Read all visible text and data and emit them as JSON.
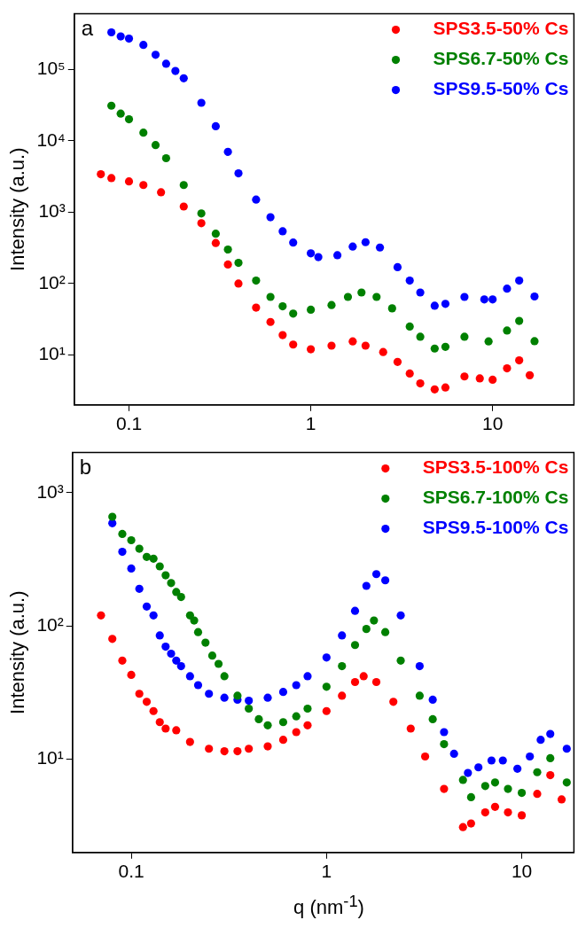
{
  "chart_data": [
    {
      "type": "scatter",
      "annotations": [
        "a"
      ],
      "ylabel": "Intensity (a.u.)",
      "log": "xy",
      "legend": "top right",
      "marker": "circle",
      "xlim": [
        0.05,
        28
      ],
      "xticks": [
        0.1,
        1,
        10
      ],
      "ylim": [
        2,
        600000
      ],
      "yticks": [
        {
          "value": 10,
          "label": "10¹"
        },
        {
          "value": 100,
          "label": "10²"
        },
        {
          "value": 1000,
          "label": "10³"
        },
        {
          "value": 10000,
          "label": "10⁴"
        },
        {
          "value": 100000,
          "label": "10⁵"
        }
      ],
      "series": [
        {
          "name": "SPS3.5-50% Cs",
          "color": "#ff0000",
          "x": [
            0.07,
            0.08,
            0.1,
            0.12,
            0.15,
            0.2,
            0.25,
            0.3,
            0.35,
            0.4,
            0.5,
            0.6,
            0.7,
            0.8,
            1.0,
            1.3,
            1.7,
            2.0,
            2.5,
            3,
            3.5,
            4,
            4.8,
            5.5,
            7,
            8.5,
            10,
            12,
            14,
            16
          ],
          "values": [
            3400,
            3000,
            2700,
            2400,
            1900,
            1200,
            700,
            370,
            185,
            100,
            46,
            29,
            19,
            14,
            12,
            13.5,
            15.5,
            13.5,
            11,
            8,
            5.5,
            4,
            3.3,
            3.5,
            5,
            4.7,
            4.5,
            6.5,
            8.4,
            5.2
          ]
        },
        {
          "name": "SPS6.7-50% Cs",
          "color": "#008000",
          "x": [
            0.08,
            0.09,
            0.1,
            0.12,
            0.14,
            0.16,
            0.2,
            0.25,
            0.3,
            0.35,
            0.4,
            0.5,
            0.6,
            0.7,
            0.8,
            1.0,
            1.3,
            1.6,
            1.9,
            2.3,
            2.8,
            3.5,
            4.0,
            4.8,
            5.5,
            7,
            9.5,
            12,
            14,
            17
          ],
          "values": [
            31000,
            24000,
            20000,
            13000,
            8700,
            5700,
            2400,
            960,
            500,
            300,
            195,
            110,
            65,
            48,
            38,
            43,
            50,
            65,
            75,
            65,
            45,
            25,
            18,
            12.3,
            13,
            18,
            15.5,
            22,
            30,
            15.6
          ]
        },
        {
          "name": "SPS9.5-50% Cs",
          "color": "#0000ff",
          "x": [
            0.08,
            0.09,
            0.1,
            0.12,
            0.14,
            0.16,
            0.18,
            0.2,
            0.25,
            0.3,
            0.35,
            0.4,
            0.5,
            0.6,
            0.7,
            0.8,
            1.0,
            1.1,
            1.4,
            1.7,
            2.0,
            2.4,
            3,
            3.5,
            4,
            4.8,
            5.5,
            7,
            9,
            10,
            12,
            14,
            17
          ],
          "values": [
            330000,
            290000,
            270000,
            220000,
            160000,
            120000,
            95000,
            75000,
            34000,
            16000,
            7000,
            3500,
            1500,
            850,
            540,
            375,
            265,
            235,
            250,
            330,
            380,
            320,
            170,
            110,
            75,
            49,
            52,
            65,
            60,
            60,
            85,
            110,
            66
          ]
        }
      ]
    },
    {
      "type": "scatter",
      "annotations": [
        "b"
      ],
      "xlabel": "q (nm$^{-1}$)",
      "ylabel": "Intensity (a.u.)",
      "log": "xy",
      "legend": "top right",
      "marker": "circle",
      "xlim": [
        0.05,
        18.5
      ],
      "xticks": [
        0.1,
        1,
        10
      ],
      "ylim": [
        2,
        2000
      ],
      "yticks": [
        {
          "value": 10,
          "label": "10¹"
        },
        {
          "value": 100,
          "label": "10²"
        },
        {
          "value": 1000,
          "label": "10³"
        }
      ],
      "series": [
        {
          "name": "SPS3.5-100% Cs",
          "color": "#ff0000",
          "x": [
            0.07,
            0.08,
            0.09,
            0.1,
            0.11,
            0.12,
            0.13,
            0.14,
            0.15,
            0.17,
            0.2,
            0.25,
            0.3,
            0.35,
            0.4,
            0.5,
            0.6,
            0.7,
            0.8,
            1.0,
            1.2,
            1.4,
            1.55,
            1.8,
            2.2,
            2.7,
            3.2,
            4,
            5,
            5.5,
            6.5,
            7.3,
            8.5,
            10,
            12,
            14,
            16
          ],
          "values": [
            120,
            80,
            55,
            43,
            31,
            27,
            23,
            19,
            17,
            16.5,
            13.5,
            12,
            11.5,
            11.5,
            12,
            12.5,
            14,
            16,
            18,
            23,
            30,
            38,
            42,
            38,
            27,
            17,
            10.5,
            6,
            3.1,
            3.3,
            4,
            4.4,
            4,
            3.8,
            5.5,
            7.6,
            5
          ]
        },
        {
          "name": "SPS6.7-100% Cs",
          "color": "#008000",
          "x": [
            0.08,
            0.09,
            0.1,
            0.11,
            0.12,
            0.13,
            0.14,
            0.15,
            0.16,
            0.17,
            0.18,
            0.2,
            0.21,
            0.22,
            0.24,
            0.26,
            0.28,
            0.3,
            0.35,
            0.4,
            0.45,
            0.5,
            0.6,
            0.7,
            0.8,
            1.0,
            1.2,
            1.4,
            1.6,
            1.75,
            2.0,
            2.4,
            3,
            3.5,
            4,
            5,
            5.5,
            6.5,
            7.3,
            8.5,
            10,
            12,
            14,
            17
          ],
          "values": [
            660,
            490,
            440,
            380,
            330,
            320,
            280,
            240,
            210,
            180,
            165,
            120,
            110,
            90,
            75,
            60,
            52,
            42,
            30,
            24,
            20,
            18,
            19,
            21,
            24,
            35,
            50,
            72,
            95,
            110,
            90,
            55,
            30,
            20,
            13,
            7,
            5.2,
            6.3,
            6.7,
            6,
            5.6,
            8,
            10.2,
            6.7
          ]
        },
        {
          "name": "SPS9.5-100% Cs",
          "color": "#0000ff",
          "x": [
            0.08,
            0.09,
            0.1,
            0.11,
            0.12,
            0.13,
            0.14,
            0.15,
            0.16,
            0.17,
            0.18,
            0.2,
            0.22,
            0.25,
            0.3,
            0.35,
            0.4,
            0.5,
            0.6,
            0.7,
            0.8,
            1.0,
            1.2,
            1.4,
            1.6,
            1.8,
            2.0,
            2.4,
            3,
            3.5,
            4,
            4.5,
            5.3,
            6,
            7,
            8,
            9.5,
            11,
            12.5,
            14,
            17
          ],
          "values": [
            590,
            360,
            270,
            190,
            140,
            120,
            85,
            70,
            62,
            55,
            50,
            42,
            36,
            31,
            29,
            28,
            27.5,
            29,
            32,
            36,
            42,
            58,
            85,
            130,
            200,
            245,
            220,
            120,
            50,
            28,
            16,
            11,
            7.9,
            8.7,
            9.8,
            9.8,
            8.5,
            10.5,
            14,
            15.5,
            12
          ]
        }
      ]
    }
  ]
}
